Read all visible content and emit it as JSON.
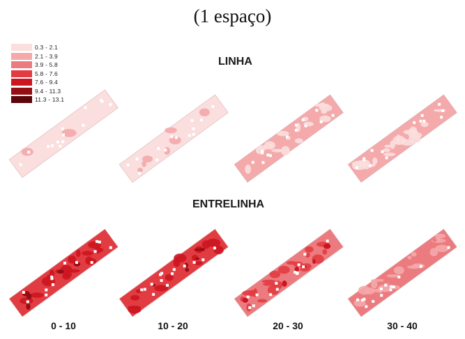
{
  "title": "(1 espaço)",
  "legend": [
    {
      "label": "0.3 - 2.1",
      "color": "#fbdede"
    },
    {
      "label": "2.1 - 3.9",
      "color": "#f4a9ab"
    },
    {
      "label": "3.9 - 5.8",
      "color": "#ec7b7f"
    },
    {
      "label": "5.8 - 7.6",
      "color": "#e23c43"
    },
    {
      "label": "7.6 - 9.4",
      "color": "#cc1520"
    },
    {
      "label": "9.4 - 11.3",
      "color": "#960d14"
    },
    {
      "label": "11.3 - 13.1",
      "color": "#5c050a"
    }
  ],
  "rows": [
    {
      "label": "LINHA",
      "maps": [
        {
          "base_class": 0,
          "patch_class": 1,
          "patch_fraction": 0.03
        },
        {
          "base_class": 0,
          "patch_class": 1,
          "patch_fraction": 0.12
        },
        {
          "base_class": 1,
          "patch_class": 0,
          "patch_fraction": 0.3
        },
        {
          "base_class": 1,
          "patch_class": 0,
          "patch_fraction": 0.35
        }
      ]
    },
    {
      "label": "ENTRELINHA",
      "maps": [
        {
          "base_class": 3,
          "patch_class": 4,
          "patch_fraction": 0.3
        },
        {
          "base_class": 3,
          "patch_class": 4,
          "patch_fraction": 0.25
        },
        {
          "base_class": 2,
          "patch_class": 3,
          "patch_fraction": 0.35
        },
        {
          "base_class": 2,
          "patch_class": 1,
          "patch_fraction": 0.35
        }
      ]
    }
  ],
  "depth_labels": [
    "0 - 10",
    "10 - 20",
    "20 - 30",
    "30 - 40"
  ]
}
